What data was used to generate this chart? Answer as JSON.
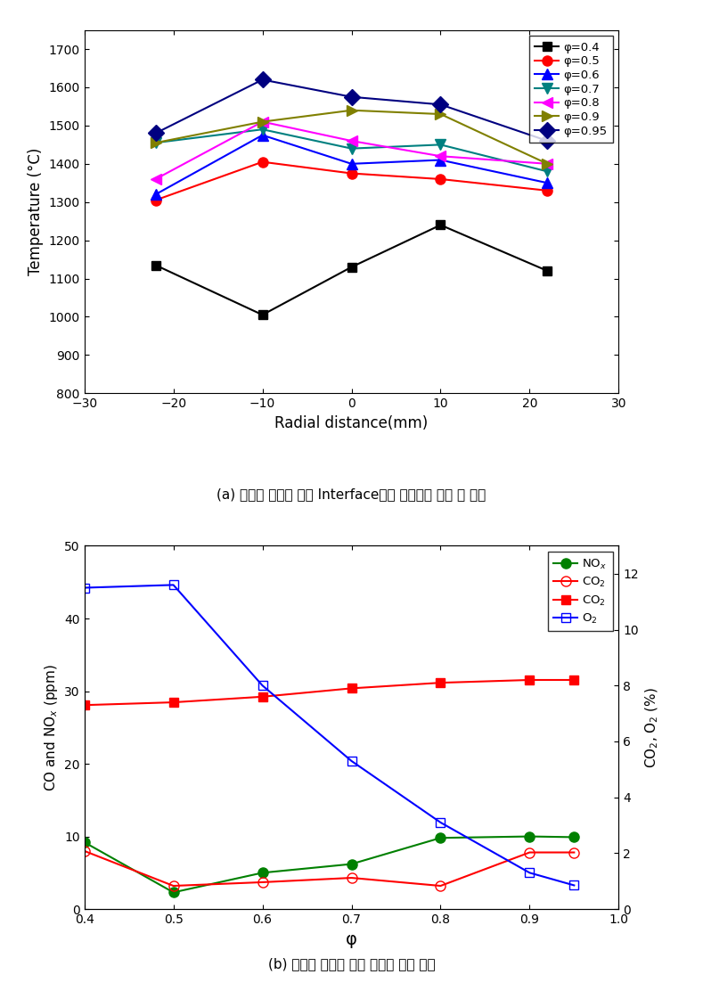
{
  "top_plot": {
    "x": [
      -22,
      -10,
      0,
      10,
      22
    ],
    "series": [
      {
        "label": "φ=0.4",
        "color": "black",
        "marker": "s",
        "linestyle": "-",
        "fillstyle": "full",
        "y": [
          1135,
          1005,
          1130,
          1240,
          1120
        ]
      },
      {
        "label": "φ=0.5",
        "color": "red",
        "marker": "o",
        "linestyle": "-",
        "fillstyle": "full",
        "y": [
          1305,
          1405,
          1375,
          1360,
          1330
        ]
      },
      {
        "label": "φ=0.6",
        "color": "blue",
        "marker": "^",
        "linestyle": "-",
        "fillstyle": "full",
        "y": [
          1320,
          1475,
          1400,
          1410,
          1350
        ]
      },
      {
        "label": "φ=0.7",
        "color": "teal",
        "marker": "v",
        "linestyle": "-",
        "fillstyle": "full",
        "y": [
          1455,
          1490,
          1440,
          1450,
          1380
        ]
      },
      {
        "label": "φ=0.8",
        "color": "magenta",
        "marker": "<",
        "linestyle": "-",
        "fillstyle": "full",
        "y": [
          1360,
          1510,
          1460,
          1420,
          1400
        ]
      },
      {
        "label": "φ=0.9",
        "color": "olive",
        "marker": ">",
        "linestyle": "-",
        "fillstyle": "full",
        "y": [
          1455,
          1510,
          1540,
          1530,
          1400
        ]
      },
      {
        "label": "φ=0.95",
        "color": "navy",
        "marker": "D",
        "linestyle": "-",
        "fillstyle": "full",
        "y": [
          1480,
          1620,
          1575,
          1555,
          1460
        ]
      }
    ],
    "xlabel": "Radial distance(mm)",
    "ylabel": "Temperature (°C)",
    "xlim": [
      -30,
      30
    ],
    "ylim": [
      800,
      1750
    ],
    "yticks": [
      800,
      900,
      1000,
      1100,
      1200,
      1300,
      1400,
      1500,
      1600,
      1700
    ],
    "xticks": [
      -30,
      -20,
      -10,
      0,
      10,
      20,
      30
    ]
  },
  "caption_a": "(a) 당량비 변화에 따른 Interface지점 반경방향 온도 장 변화",
  "bottom_plot": {
    "phi": [
      0.4,
      0.5,
      0.6,
      0.7,
      0.8,
      0.9,
      0.95
    ],
    "NOx": {
      "y": [
        9.2,
        2.3,
        5.0,
        6.2,
        9.8,
        10.0,
        9.9
      ],
      "color": "green",
      "marker": "o",
      "fillstyle": "full",
      "label": "NO$_x$"
    },
    "CO_open": {
      "y": [
        8.0,
        3.2,
        3.7,
        4.3,
        3.2,
        7.8,
        7.8
      ],
      "color": "red",
      "marker": "o",
      "fillstyle": "none",
      "label": "CO$_2$"
    },
    "CO2_solid": {
      "y_right": [
        7.3,
        7.4,
        7.6,
        7.9,
        8.1,
        8.2,
        8.2
      ],
      "color": "red",
      "marker": "s",
      "fillstyle": "full",
      "label": "CO$_2$"
    },
    "O2": {
      "y_right": [
        11.5,
        11.6,
        8.0,
        5.3,
        3.1,
        1.3,
        0.85
      ],
      "color": "blue",
      "marker": "s",
      "fillstyle": "none",
      "label": "O$_2$"
    },
    "xlabel": "φ",
    "ylabel_left": "CO and NO$_x$ (ppm)",
    "ylabel_right": "CO$_2$, O$_2$ (%)",
    "xlim": [
      0.4,
      1.0
    ],
    "ylim_left": [
      0,
      50
    ],
    "ylim_right": [
      0,
      13
    ],
    "yticks_left": [
      0,
      10,
      20,
      30,
      40,
      50
    ],
    "yticks_right": [
      0,
      2,
      4,
      6,
      8,
      10,
      12
    ],
    "xticks": [
      0.4,
      0.5,
      0.6,
      0.7,
      0.8,
      0.9,
      1.0
    ]
  },
  "caption_b": "(b) 당량비 변화에 따른 배가스 배출 특성"
}
